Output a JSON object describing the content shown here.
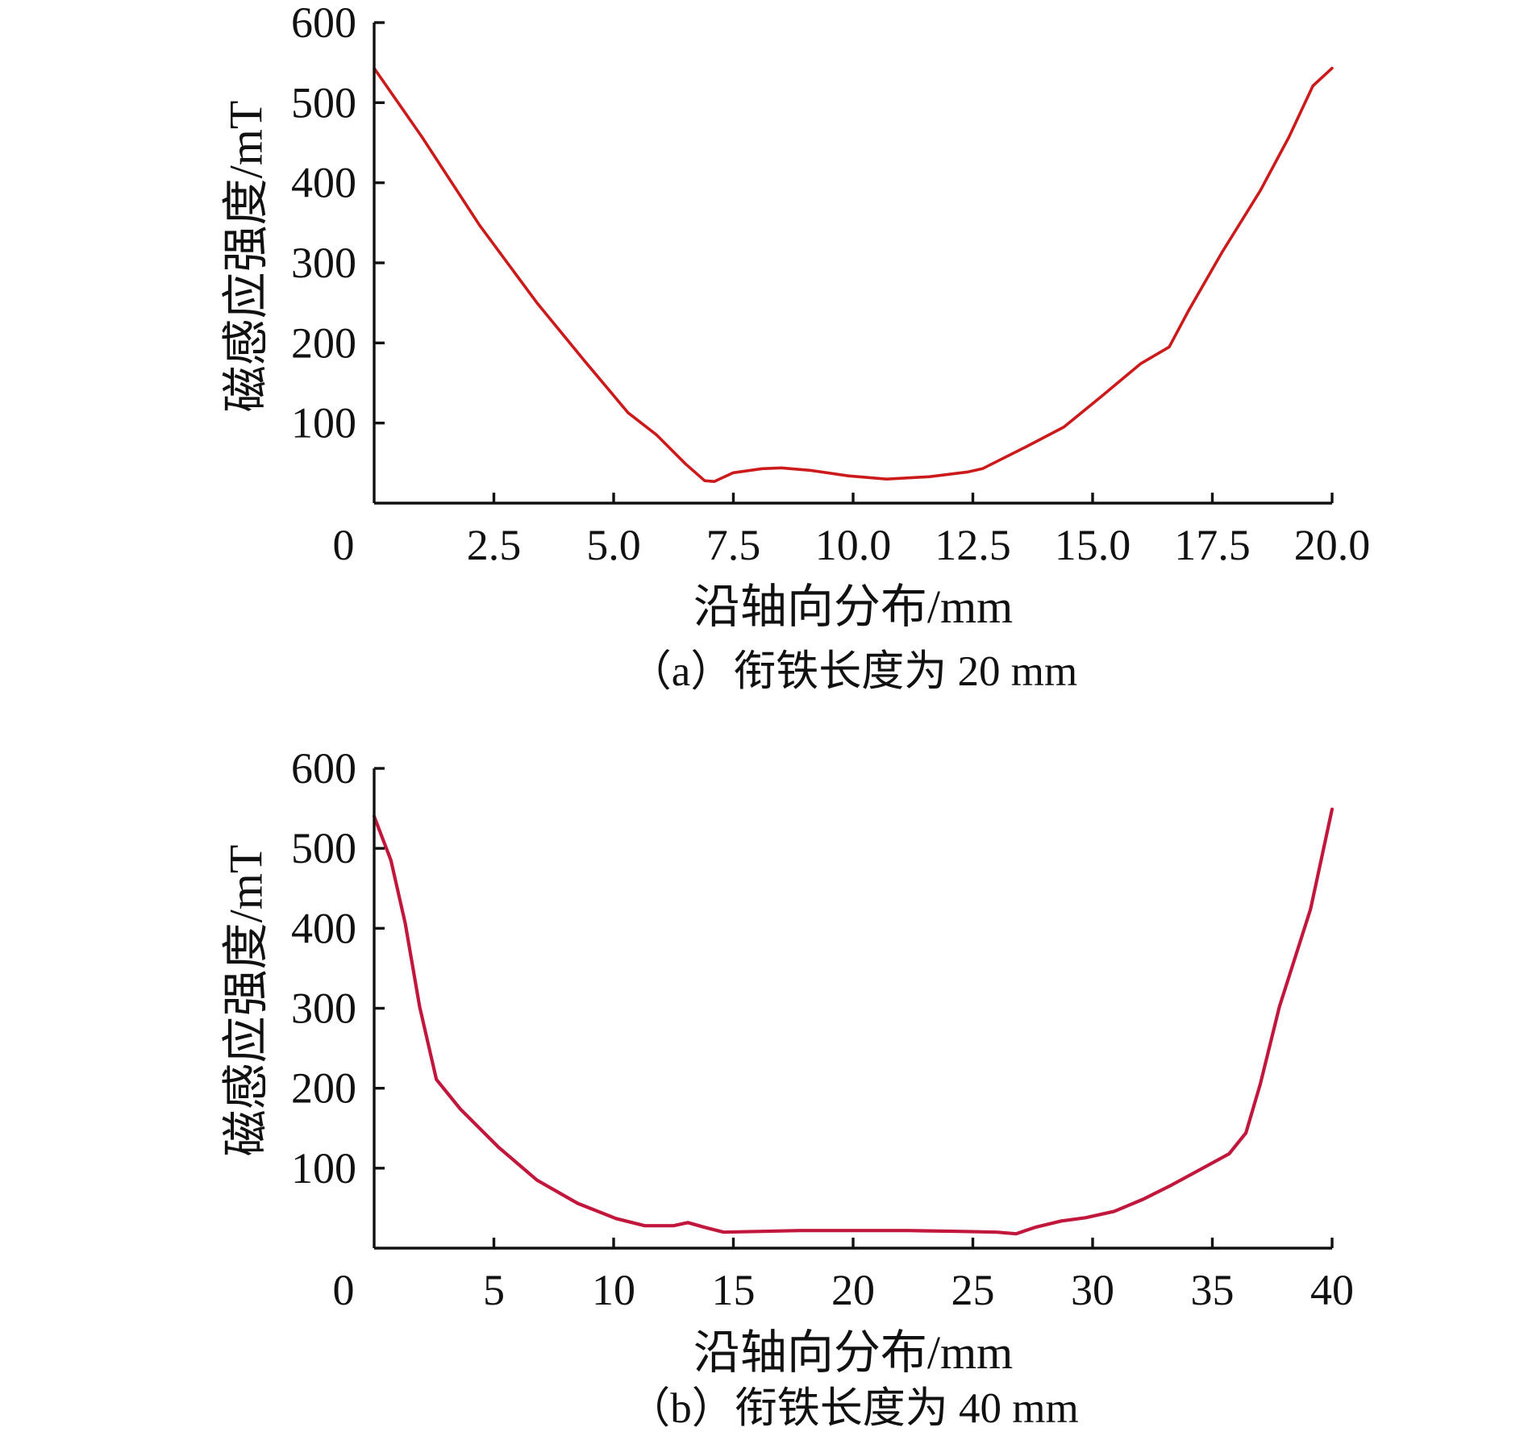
{
  "chart_data": [
    {
      "type": "line",
      "caption": "（a）衔铁长度为 20 mm",
      "xlabel": "沿轴向分布/mm",
      "ylabel": "磁感应强度/mT",
      "origin_label": "0",
      "xlim": [
        0,
        20
      ],
      "ylim": [
        0,
        600
      ],
      "x_ticks": [
        2.5,
        5.0,
        7.5,
        10.0,
        12.5,
        15.0,
        17.5,
        20.0
      ],
      "x_tick_labels": [
        "2.5",
        "5.0",
        "7.5",
        "10.0",
        "12.5",
        "15.0",
        "17.5",
        "20.0"
      ],
      "y_ticks": [
        100,
        200,
        300,
        400,
        500,
        600
      ],
      "y_tick_labels": [
        "100",
        "200",
        "300",
        "400",
        "500",
        "600"
      ],
      "grid": false,
      "line_color": "#cc1a1a",
      "series": [
        {
          "x": [
            0,
            1.0,
            2.2,
            3.4,
            4.4,
            5.3,
            5.9,
            6.5,
            6.9,
            7.1,
            7.5,
            8.1,
            8.5,
            9.1,
            9.9,
            10.7,
            11.6,
            12.4,
            12.7,
            13.6,
            14.4,
            15.2,
            16.0,
            16.6,
            17.0,
            17.7,
            18.5,
            19.1,
            19.6,
            20.0
          ],
          "y": [
            543,
            457,
            347,
            250,
            177,
            113,
            85,
            49,
            28,
            27,
            38,
            43,
            44,
            41,
            34,
            30,
            33,
            39,
            43,
            70,
            95,
            134,
            174,
            195,
            240,
            313,
            390,
            457,
            521,
            543
          ]
        }
      ]
    },
    {
      "type": "line",
      "caption": "（b）衔铁长度为 40 mm",
      "xlabel": "沿轴向分布/mm",
      "ylabel": "磁感应强度/mT",
      "origin_label": "0",
      "xlim": [
        0,
        40
      ],
      "ylim": [
        0,
        600
      ],
      "x_ticks": [
        5,
        10,
        15,
        20,
        25,
        30,
        35,
        40
      ],
      "x_tick_labels": [
        "5",
        "10",
        "15",
        "20",
        "25",
        "30",
        "35",
        "40"
      ],
      "y_ticks": [
        100,
        200,
        300,
        400,
        500,
        600
      ],
      "y_tick_labels": [
        "100",
        "200",
        "300",
        "400",
        "500",
        "600"
      ],
      "grid": false,
      "line_color": "#c2173c",
      "series": [
        {
          "x": [
            0,
            0.7,
            1.3,
            1.9,
            2.6,
            3.6,
            5.2,
            6.8,
            8.5,
            10.1,
            11.3,
            12.5,
            13.1,
            13.8,
            14.6,
            16.2,
            17.8,
            19.9,
            22.3,
            24.4,
            26.0,
            26.8,
            27.6,
            28.7,
            29.7,
            30.9,
            32.1,
            33.3,
            34.6,
            35.7,
            36.4,
            37.0,
            37.8,
            39.1,
            40.0
          ],
          "y": [
            540,
            485,
            406,
            302,
            211,
            174,
            126,
            85,
            56,
            37,
            28,
            28,
            32,
            26,
            20,
            21,
            22,
            22,
            22,
            21,
            20,
            18,
            26,
            34,
            38,
            46,
            61,
            79,
            100,
            118,
            144,
            205,
            302,
            424,
            549
          ]
        }
      ]
    }
  ]
}
